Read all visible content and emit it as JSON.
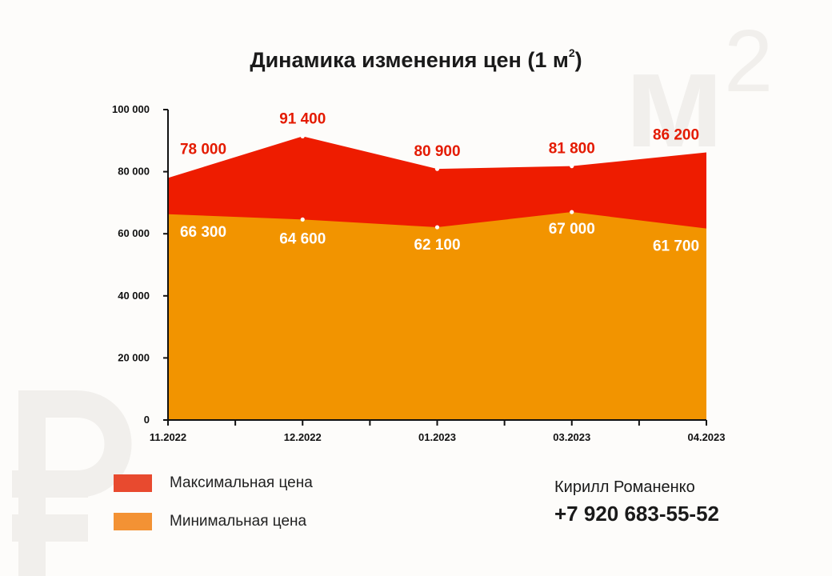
{
  "title": "Динамика изменения цен (1 м",
  "title_sup": "2",
  "watermark": {
    "letter": "м",
    "exponent": "2",
    "currency": "₽"
  },
  "chart_data": {
    "type": "area",
    "categories": [
      "11.2022",
      "12.2022",
      "01.2023",
      "03.2023",
      "04.2023"
    ],
    "series": [
      {
        "name": "Максимальная цена",
        "values": [
          78000,
          91400,
          80900,
          81800,
          86200
        ],
        "labels": [
          "78 000",
          "91 400",
          "80 900",
          "81 800",
          "86 200"
        ],
        "color": "#ee1c00"
      },
      {
        "name": "Минимальная цена",
        "values": [
          66300,
          64600,
          62100,
          67000,
          61700
        ],
        "labels": [
          "66 300",
          "64 600",
          "62 100",
          "67 000",
          "61 700"
        ],
        "color": "#f29400"
      }
    ],
    "ylim": [
      0,
      100000
    ],
    "yticks": [
      0,
      20000,
      40000,
      60000,
      80000,
      100000
    ],
    "ytick_labels": [
      "0",
      "20 000",
      "40 000",
      "60 000",
      "80 000",
      "100 000"
    ],
    "grid": false,
    "legend_position": "bottom-left"
  },
  "legend": [
    {
      "label": "Максимальная цена",
      "color": "#e84a2f"
    },
    {
      "label": "Минимальная цена",
      "color": "#f39234"
    }
  ],
  "contact": {
    "name": "Кирилл Романенко",
    "phone": "+7 920 683-55-52"
  }
}
